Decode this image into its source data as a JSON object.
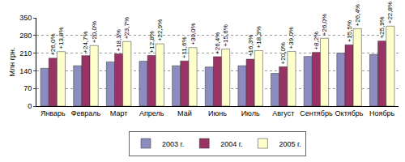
{
  "chart_data": {
    "type": "bar",
    "y_label": "Млн грн.",
    "categories": [
      "Январь",
      "Февраль",
      "Март",
      "Апрель",
      "Май",
      "Июнь",
      "Июль",
      "Август",
      "Сентябрь",
      "Октябрь",
      "Ноябрь"
    ],
    "series": [
      {
        "name": "2003 г.",
        "color": "#8c8cc0",
        "values": [
          150,
          160,
          175,
          178,
          160,
          155,
          160,
          130,
          197,
          210,
          205
        ]
      },
      {
        "name": "2004 г.",
        "color": "#993366",
        "values": [
          190,
          200,
          207,
          201,
          179,
          196,
          186,
          156,
          213,
          243,
          258
        ],
        "annotations": [
          "+26,0%",
          "+24,7%",
          "+18,3%",
          "+12,8%",
          "+11,6%",
          "+26,4%",
          "+16,3%",
          "+20,0%",
          "+8,2%",
          "+15,5%",
          "+25,9%"
        ]
      },
      {
        "name": "2005 г.",
        "color": "#ffffcc",
        "values": [
          216,
          240,
          256,
          247,
          232,
          226,
          220,
          217,
          269,
          307,
          317
        ],
        "annotations": [
          "+13,8%",
          "+20,0%",
          "+23,7%",
          "+22,9%",
          "+30,0%",
          "+15,6%",
          "+18,3%",
          "+39,0%",
          "+26,0%",
          "+26,4%",
          "+22,8%"
        ]
      }
    ],
    "ylim": [
      0,
      350
    ],
    "yticks": [
      0,
      70,
      140,
      210,
      280,
      350
    ],
    "grid": true,
    "legend": "bottom"
  }
}
